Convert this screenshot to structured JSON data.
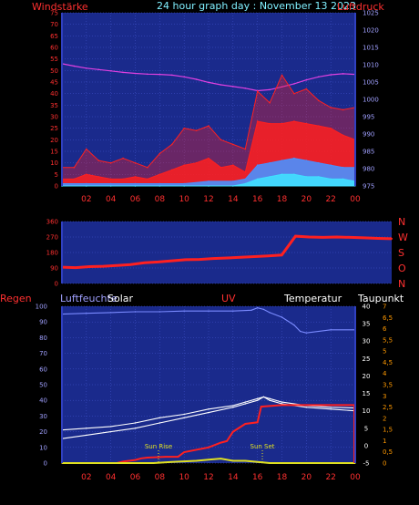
{
  "header": {
    "left_label": "Windstärke",
    "title": "24 hour graph day : November 13 2023",
    "right_label": "Luftdruck"
  },
  "colors": {
    "background": "#000000",
    "plot_bg": "#1a2a8c",
    "axis": "#3040c0",
    "grid": "#4456d0",
    "red": "#ff2020",
    "magenta": "#e040e0",
    "cyan": "#40e0ff",
    "white": "#ffffff",
    "light_blue": "#7a8aff",
    "orange": "#ff9900",
    "yellow": "#e0e020",
    "label_cyan": "#80f0ff",
    "label_red": "#ff3030",
    "label_light_blue": "#a0a0ff"
  },
  "x_ticks": [
    "02",
    "04",
    "06",
    "08",
    "10",
    "12",
    "14",
    "16",
    "18",
    "20",
    "22",
    "00"
  ],
  "chart_data": [
    {
      "type": "line",
      "name": "wind_pressure",
      "x_unit": "hour",
      "y_left_ticks": [
        "75",
        "70",
        "65",
        "60",
        "55",
        "50",
        "45",
        "40",
        "35",
        "30",
        "25",
        "20",
        "15",
        "10",
        "5",
        "0"
      ],
      "y_right_ticks": [
        "1025",
        "1020",
        "1015",
        "1010",
        "1005",
        "1000",
        "995",
        "990",
        "985",
        "980",
        "975"
      ],
      "ylim_left": [
        0,
        75
      ],
      "ylim_right": [
        975,
        1025
      ],
      "series": [
        {
          "color": "#e040e0",
          "axis": "right",
          "x": [
            0,
            1,
            2,
            3,
            4,
            5,
            6,
            7,
            8,
            9,
            10,
            11,
            12,
            13,
            14,
            15,
            16,
            17,
            18,
            19,
            20,
            21,
            22,
            23,
            24
          ],
          "values": [
            1010.3,
            1009.6,
            1009.0,
            1008.6,
            1008.2,
            1007.8,
            1007.5,
            1007.3,
            1007.2,
            1007.0,
            1006.5,
            1005.8,
            1004.9,
            1004.2,
            1003.7,
            1003.2,
            1002.5,
            1002.8,
            1003.6,
            1004.5,
            1005.6,
            1006.5,
            1007.1,
            1007.4,
            1007.2
          ]
        },
        {
          "color": "#ff2020",
          "axis": "left",
          "x": [
            0,
            1,
            2,
            3,
            4,
            5,
            6,
            7,
            8,
            9,
            10,
            11,
            12,
            13,
            14,
            15,
            16,
            17,
            18,
            19,
            20,
            21,
            22,
            23,
            24
          ],
          "values": [
            3,
            3,
            5,
            4,
            3,
            3,
            4,
            3,
            5,
            7,
            9,
            10,
            12,
            8,
            9,
            6,
            28,
            27,
            27,
            28,
            27,
            26,
            25,
            22,
            20
          ]
        },
        {
          "color": "#ff2020",
          "axis": "left",
          "x": [
            0,
            1,
            2,
            3,
            4,
            5,
            6,
            7,
            8,
            9,
            10,
            11,
            12,
            13,
            14,
            15,
            16,
            17,
            18,
            19,
            20,
            21,
            22,
            23,
            24
          ],
          "values": [
            8,
            8,
            16,
            11,
            10,
            12,
            10,
            8,
            14,
            18,
            25,
            24,
            26,
            20,
            18,
            16,
            41,
            36,
            48,
            40,
            42,
            37,
            34,
            33,
            34
          ]
        },
        {
          "color": "#4a90ff",
          "axis": "left",
          "x": [
            0,
            2,
            4,
            6,
            8,
            10,
            12,
            14,
            15,
            16,
            17,
            18,
            19,
            20,
            21,
            22,
            23,
            24
          ],
          "values": [
            1,
            1,
            1,
            1,
            1,
            1,
            2,
            2,
            3,
            9,
            10,
            11,
            12,
            11,
            10,
            9,
            8,
            8
          ]
        },
        {
          "color": "#40e0ff",
          "axis": "left",
          "x": [
            0,
            2,
            4,
            6,
            8,
            10,
            12,
            14,
            15,
            16,
            17,
            18,
            19,
            20,
            21,
            22,
            23,
            24
          ],
          "values": [
            0,
            0,
            0,
            0,
            0,
            0,
            0,
            0,
            1,
            3,
            4,
            5,
            5,
            4,
            4,
            3,
            3,
            2
          ]
        }
      ]
    },
    {
      "type": "line",
      "name": "wind_direction",
      "x_unit": "hour",
      "y_left_ticks": [
        "360",
        "270",
        "180",
        "90",
        "0"
      ],
      "y_right_letters": [
        "N",
        "W",
        "S",
        "O",
        "N"
      ],
      "ylim": [
        0,
        360
      ],
      "series": [
        {
          "color": "#ff2020",
          "x": [
            0,
            1,
            2,
            3,
            4,
            5,
            6,
            7,
            8,
            9,
            10,
            11,
            12,
            13,
            14,
            15,
            16,
            17,
            18,
            19,
            20,
            21,
            22,
            23,
            24
          ],
          "values": [
            95,
            92,
            98,
            100,
            105,
            110,
            120,
            125,
            132,
            138,
            140,
            145,
            148,
            152,
            156,
            160,
            165,
            275,
            270,
            268,
            270,
            268,
            265,
            262,
            260
          ]
        }
      ]
    },
    {
      "type": "line",
      "name": "rain_humidity_solar_uv_temperature",
      "x_unit": "hour",
      "labels": [
        "Regen",
        "Luftfeuchte",
        "Solar",
        "UV",
        "Temperatur",
        "Taupunkt"
      ],
      "y_left_ticks": [
        "100",
        "90",
        "80",
        "70",
        "60",
        "50",
        "40",
        "30",
        "20",
        "10",
        "0"
      ],
      "y_temp_ticks": [
        "40",
        "35",
        "30",
        "25",
        "20",
        "15",
        "10",
        "5",
        "0",
        "-5"
      ],
      "y_uv_ticks": [
        "7",
        "6,5",
        "6",
        "5,5",
        "5",
        "4,5",
        "4",
        "3,5",
        "3",
        "2,5",
        "2",
        "1,5",
        "1",
        "0,5",
        "0"
      ],
      "ylim_left": [
        0,
        100
      ],
      "ylim_temp": [
        -5,
        40
      ],
      "annotations": [
        {
          "text": "Sun Rise",
          "x": 7.9
        },
        {
          "text": "Sun Set",
          "x": 16.4
        }
      ],
      "series": [
        {
          "color": "#7a8aff",
          "axis": "left",
          "x": [
            0,
            2,
            4,
            6,
            8,
            10,
            12,
            14,
            15.5,
            16,
            16.5,
            17,
            18,
            19,
            19.5,
            20,
            22,
            24
          ],
          "values": [
            95,
            95.5,
            96,
            96.5,
            96.5,
            97,
            97,
            97,
            97.5,
            99,
            98,
            96,
            93,
            88,
            84,
            83,
            85,
            85
          ]
        },
        {
          "color": "#ffffff",
          "axis": "temp",
          "x": [
            0,
            2,
            4,
            6,
            8,
            10,
            12,
            14,
            15,
            16,
            16.5,
            17,
            18,
            20,
            22,
            24
          ],
          "values": [
            4.5,
            5,
            5.5,
            6.5,
            8,
            9,
            10.5,
            11.5,
            12.5,
            13.5,
            14,
            13.5,
            12.5,
            11.5,
            11,
            10.8
          ]
        },
        {
          "color": "#ffffff",
          "axis": "temp",
          "x": [
            0,
            2,
            4,
            6,
            8,
            10,
            12,
            14,
            15,
            16,
            16.5,
            17,
            18,
            20,
            22,
            24
          ],
          "values": [
            2,
            3,
            4,
            5,
            6.5,
            8,
            9.5,
            11,
            12,
            13,
            14,
            13,
            12,
            11,
            10.5,
            10
          ]
        },
        {
          "color": "#ff2020",
          "axis": "left",
          "x": [
            0,
            3,
            4.5,
            5,
            6,
            6.5,
            7,
            8.5,
            9.5,
            10,
            12,
            13,
            13.5,
            14,
            15,
            16,
            16.3,
            18,
            20,
            22,
            24
          ],
          "values": [
            0,
            0,
            0,
            1,
            2,
            3,
            3.5,
            4,
            4,
            7,
            10,
            13,
            14,
            20,
            25,
            26,
            36,
            37,
            37,
            37,
            37
          ]
        },
        {
          "color": "#e0e020",
          "axis": "uv",
          "x": [
            0,
            7.5,
            9,
            11,
            12,
            13,
            14,
            15,
            16,
            17,
            24
          ],
          "values": [
            0,
            0,
            0.05,
            0.1,
            0.15,
            0.2,
            0.1,
            0.1,
            0.05,
            0,
            0
          ]
        }
      ]
    }
  ]
}
